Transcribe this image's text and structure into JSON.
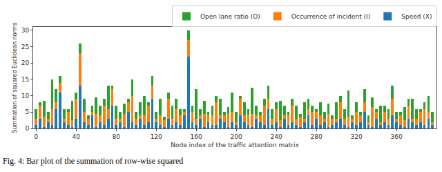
{
  "chart_data": {
    "type": "bar",
    "stacked": true,
    "legend": "top right",
    "x_label": "Node index of the traffic attention matrix",
    "y_label": "Summation of squared Euclidean norms",
    "caption": "Fig. 4: Bar plot of the summation of row-wise squared",
    "xlim": [
      -3,
      400
    ],
    "xticks": [
      0,
      40,
      80,
      120,
      160,
      200,
      240,
      280,
      320,
      360
    ],
    "ylim": [
      0,
      31
    ],
    "yticks": [
      0,
      5,
      10,
      15,
      20,
      25,
      30
    ],
    "x": [
      0,
      4,
      8,
      12,
      16,
      20,
      24,
      28,
      32,
      36,
      40,
      44,
      48,
      52,
      56,
      60,
      64,
      68,
      72,
      76,
      80,
      84,
      88,
      92,
      96,
      100,
      104,
      108,
      112,
      116,
      120,
      124,
      128,
      132,
      136,
      140,
      144,
      148,
      152,
      156,
      160,
      164,
      168,
      172,
      176,
      180,
      184,
      188,
      192,
      196,
      200,
      204,
      208,
      212,
      216,
      220,
      224,
      228,
      232,
      236,
      240,
      244,
      248,
      252,
      256,
      260,
      264,
      268,
      272,
      276,
      280,
      284,
      288,
      292,
      296,
      300,
      304,
      308,
      312,
      316,
      320,
      324,
      328,
      332,
      336,
      340,
      344,
      348,
      352,
      356,
      360,
      364,
      368,
      372,
      376,
      380,
      384,
      388,
      392,
      396
    ],
    "series": [
      {
        "name": "Speed (X)",
        "color": "#1f77b4",
        "values": [
          1,
          3,
          0.5,
          2,
          1,
          6,
          11,
          2,
          1,
          0.5,
          3,
          13,
          2,
          1,
          4,
          0.5,
          2,
          1,
          3,
          7,
          1,
          2,
          0.5,
          5,
          2,
          1,
          3,
          1,
          2,
          9,
          2,
          1,
          0.5,
          3,
          1,
          2,
          1,
          4,
          22,
          2,
          1,
          3,
          0.5,
          2,
          1,
          1,
          3,
          2,
          0.5,
          2,
          1,
          4,
          2,
          1,
          0.5,
          3,
          2,
          1,
          6,
          1,
          2,
          0.5,
          3,
          1,
          2,
          1,
          0.5,
          2,
          4,
          1,
          3,
          1,
          2,
          0.5,
          1,
          2,
          3,
          1,
          0.5,
          2,
          1,
          2,
          5,
          1,
          0.5,
          3,
          1,
          2,
          1,
          4,
          2,
          1,
          0.5,
          3,
          2,
          1,
          2,
          1,
          3,
          1
        ]
      },
      {
        "name": "Occurrence of incident (I)",
        "color": "#ff7f0e",
        "values": [
          2,
          4,
          3,
          1,
          5,
          2,
          3,
          1,
          4,
          2,
          6,
          10,
          3,
          2,
          1,
          4,
          2,
          6,
          3,
          5,
          2,
          1,
          4,
          3,
          8,
          2,
          1,
          3,
          5,
          4,
          1,
          3,
          2,
          6,
          2,
          4,
          3,
          1,
          5,
          3,
          2,
          1,
          4,
          2,
          3,
          7,
          1,
          2,
          4,
          3,
          1,
          5,
          2,
          3,
          4,
          1,
          2,
          6,
          3,
          2,
          4,
          2,
          1,
          3,
          5,
          2,
          3,
          1,
          2,
          4,
          2,
          3,
          1,
          4,
          2,
          1,
          5,
          2,
          3,
          1,
          4,
          2,
          3,
          1,
          6,
          2,
          1,
          3,
          2,
          5,
          1,
          3,
          2,
          4,
          1,
          2,
          3,
          5,
          2,
          1
        ]
      },
      {
        "name": "Open lane ratio (O)",
        "color": "#2ca02c",
        "values": [
          3,
          1,
          5,
          2,
          9,
          4,
          2,
          3,
          1,
          6,
          2,
          3,
          4,
          1,
          2,
          5,
          3,
          2,
          7,
          1,
          4,
          2,
          3,
          1,
          5,
          2,
          4,
          6,
          1,
          3,
          2,
          5,
          1,
          2,
          4,
          3,
          2,
          1,
          3,
          2,
          9,
          2,
          4,
          1,
          3,
          2,
          5,
          1,
          2,
          6,
          3,
          1,
          4,
          2,
          8,
          3,
          1,
          2,
          4,
          3,
          2,
          6,
          3,
          1,
          2,
          4,
          1,
          5,
          3,
          2,
          1,
          4,
          2,
          3,
          1,
          5,
          2,
          3,
          8,
          1,
          3,
          1,
          4,
          2,
          3,
          1,
          5,
          2,
          3,
          4,
          2,
          1,
          4,
          2,
          6,
          3,
          1,
          2,
          5,
          3
        ]
      }
    ]
  }
}
